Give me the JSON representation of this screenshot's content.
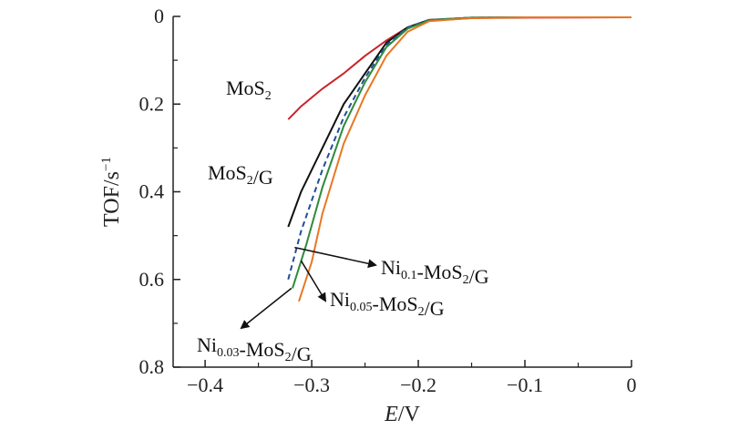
{
  "chart_data": {
    "type": "line",
    "xlabel": "E/V",
    "ylabel": "TOF/s⁻¹",
    "xlim": [
      -0.43,
      0.0
    ],
    "ylim": [
      0.0,
      0.8
    ],
    "y_inverted": true,
    "x_ticks": [
      -0.4,
      -0.3,
      -0.2,
      -0.1,
      0
    ],
    "x_tick_labels": [
      "−0.4",
      "−0.3",
      "−0.2",
      "−0.1",
      "0"
    ],
    "y_ticks": [
      0,
      0.2,
      0.4,
      0.6,
      0.8
    ],
    "y_tick_labels": [
      "0",
      "0.2",
      "0.4",
      "0.6",
      "0.8"
    ],
    "grid": false,
    "series": [
      {
        "name": "MoS₂",
        "color": "#c8242b",
        "dash": "",
        "x": [
          -0.322,
          -0.31,
          -0.29,
          -0.27,
          -0.25,
          -0.23,
          -0.21,
          -0.19,
          -0.15,
          -0.1,
          0.0
        ],
        "y": [
          0.235,
          0.205,
          0.165,
          0.13,
          0.09,
          0.055,
          0.025,
          0.01,
          0.004,
          0.003,
          0.002
        ]
      },
      {
        "name": "MoS₂/G",
        "color": "#111111",
        "dash": "",
        "x": [
          -0.322,
          -0.31,
          -0.29,
          -0.27,
          -0.25,
          -0.23,
          -0.21,
          -0.19,
          -0.15,
          -0.1,
          0.0
        ],
        "y": [
          0.48,
          0.4,
          0.3,
          0.2,
          0.13,
          0.06,
          0.025,
          0.008,
          0.003,
          0.002,
          0.002
        ]
      },
      {
        "name": "Ni₀.₁-MoS₂/G",
        "color": "#1f4e9a",
        "dash": "6,4",
        "x": [
          -0.322,
          -0.31,
          -0.29,
          -0.27,
          -0.25,
          -0.23,
          -0.21,
          -0.19,
          -0.15,
          -0.1,
          0.0
        ],
        "y": [
          0.6,
          0.49,
          0.35,
          0.23,
          0.14,
          0.065,
          0.025,
          0.008,
          0.003,
          0.002,
          0.002
        ]
      },
      {
        "name": "Ni₀.₀₃-MoS₂/G",
        "color": "#2e8b3a",
        "dash": "",
        "x": [
          -0.318,
          -0.305,
          -0.29,
          -0.27,
          -0.25,
          -0.23,
          -0.21,
          -0.19,
          -0.15,
          -0.1,
          0.0
        ],
        "y": [
          0.62,
          0.52,
          0.39,
          0.25,
          0.15,
          0.07,
          0.028,
          0.009,
          0.003,
          0.002,
          0.002
        ]
      },
      {
        "name": "Ni₀.₀₅-MoS₂/G",
        "color": "#e87722",
        "dash": "",
        "x": [
          -0.312,
          -0.3,
          -0.29,
          -0.27,
          -0.25,
          -0.23,
          -0.21,
          -0.19,
          -0.15,
          -0.1,
          0.0
        ],
        "y": [
          0.65,
          0.56,
          0.45,
          0.29,
          0.18,
          0.09,
          0.035,
          0.011,
          0.004,
          0.002,
          0.002
        ]
      }
    ],
    "annotations": [
      {
        "label": "MoS₂",
        "base": "MoS",
        "parts": [
          [
            "MoS",
            ""
          ],
          [
            "2",
            "sub"
          ]
        ]
      },
      {
        "label": "MoS₂/G",
        "parts": [
          [
            "MoS",
            ""
          ],
          [
            "2",
            "sub"
          ],
          [
            "/G",
            ""
          ]
        ]
      },
      {
        "label": "Ni₀.₁-MoS₂/G",
        "parts": [
          [
            "Ni",
            ""
          ],
          [
            "0.1",
            "sub"
          ],
          [
            "-MoS",
            ""
          ],
          [
            "2",
            "sub"
          ],
          [
            "/G",
            ""
          ]
        ]
      },
      {
        "label": "Ni₀.₀₅-MoS₂/G",
        "parts": [
          [
            "Ni",
            ""
          ],
          [
            "0.05",
            "sub"
          ],
          [
            "-MoS",
            ""
          ],
          [
            "2",
            "sub"
          ],
          [
            "/G",
            ""
          ]
        ]
      },
      {
        "label": "Ni₀.₀₃-MoS₂/G",
        "parts": [
          [
            "Ni",
            ""
          ],
          [
            "0.03",
            "sub"
          ],
          [
            "-MoS",
            ""
          ],
          [
            "2",
            "sub"
          ],
          [
            "/G",
            ""
          ]
        ]
      }
    ]
  }
}
